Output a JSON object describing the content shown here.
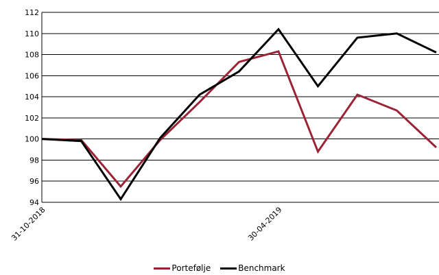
{
  "chart_data": {
    "type": "line",
    "x": [
      "31-10-2018",
      "",
      "",
      "",
      "",
      "",
      "30-04-2019",
      "",
      "",
      "",
      ""
    ],
    "xticks_labeled": [
      "31-10-2018",
      "30-04-2019"
    ],
    "ylim": [
      94,
      112
    ],
    "yticks": [
      94,
      96,
      98,
      100,
      102,
      104,
      106,
      108,
      110,
      112
    ],
    "grid": true,
    "legend_position": "bottom",
    "series": [
      {
        "name": "Portefølje",
        "color": "#9b2335",
        "values": [
          100.0,
          99.9,
          95.5,
          99.9,
          103.5,
          107.3,
          108.3,
          98.8,
          104.2,
          102.7,
          99.2
        ]
      },
      {
        "name": "Benchmark",
        "color": "#000000",
        "values": [
          100.0,
          99.8,
          94.3,
          100.1,
          104.2,
          106.4,
          110.4,
          105.0,
          109.6,
          110.0,
          108.2
        ]
      }
    ]
  }
}
